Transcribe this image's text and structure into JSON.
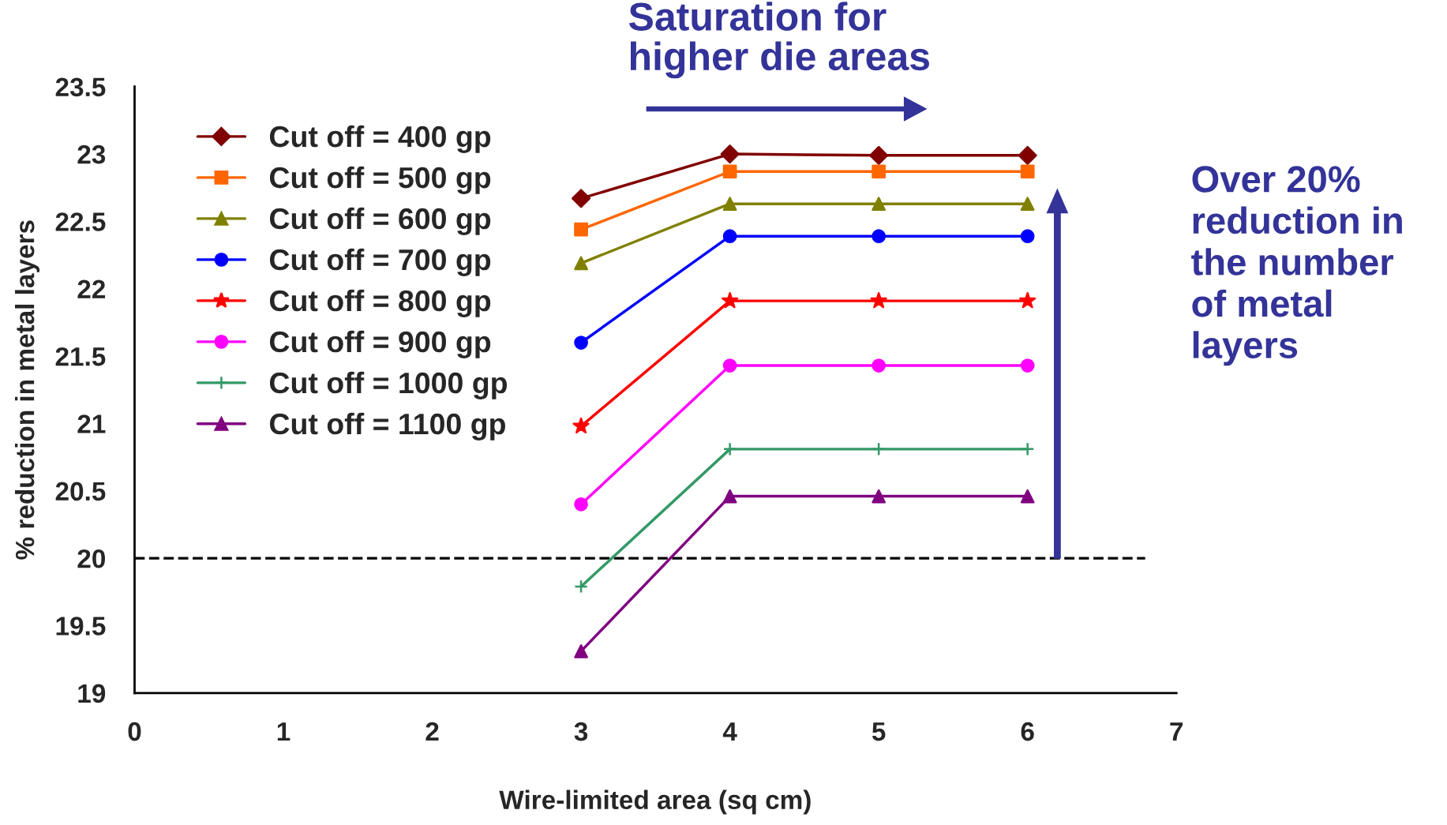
{
  "chart_data": {
    "type": "line",
    "xlabel": "Wire-limited area (sq cm)",
    "ylabel": "% reduction in metal layers",
    "x": [
      3,
      4,
      5,
      6
    ],
    "xlim": [
      0,
      7
    ],
    "xticks": [
      0,
      1,
      2,
      3,
      4,
      5,
      6,
      7
    ],
    "ylim": [
      19,
      23.5
    ],
    "yticks": [
      19,
      19.5,
      20,
      20.5,
      21,
      21.5,
      22,
      22.5,
      23,
      23.5
    ],
    "grid": false,
    "legend": "top left",
    "line_style": "solid",
    "series": [
      {
        "name": "Cut off = 400 gp",
        "color": "#800000",
        "marker": "diamond",
        "values": [
          22.67,
          23.0,
          22.99,
          22.99
        ]
      },
      {
        "name": "Cut off = 500 gp",
        "color": "#ff6600",
        "marker": "square",
        "values": [
          22.44,
          22.87,
          22.87,
          22.87
        ]
      },
      {
        "name": "Cut off = 600 gp",
        "color": "#808000",
        "marker": "triangle",
        "values": [
          22.19,
          22.63,
          22.63,
          22.63
        ]
      },
      {
        "name": "Cut off = 700 gp",
        "color": "#0000ff",
        "marker": "circle",
        "values": [
          21.6,
          22.39,
          22.39,
          22.39
        ]
      },
      {
        "name": "Cut off = 800 gp",
        "color": "#ff0000",
        "marker": "star",
        "values": [
          20.98,
          21.91,
          21.91,
          21.91
        ]
      },
      {
        "name": "Cut off = 900 gp",
        "color": "#ff00ff",
        "marker": "circle",
        "values": [
          20.4,
          21.43,
          21.43,
          21.43
        ]
      },
      {
        "name": "Cut off = 1000 gp",
        "color": "#339966",
        "marker": "cross",
        "values": [
          19.79,
          20.81,
          20.81,
          20.81
        ]
      },
      {
        "name": "Cut off = 1100 gp",
        "color": "#800080",
        "marker": "triangle",
        "values": [
          19.31,
          20.46,
          20.46,
          20.46
        ]
      }
    ],
    "ref_lines": [
      {
        "axis": "y",
        "value": 20,
        "color": "#000000",
        "line_style": "dashed"
      }
    ],
    "annotations": [
      "Saturation for\nhigher die areas",
      "Over 20%\nreduction in\nthe number\nof metal\nlayers"
    ]
  }
}
